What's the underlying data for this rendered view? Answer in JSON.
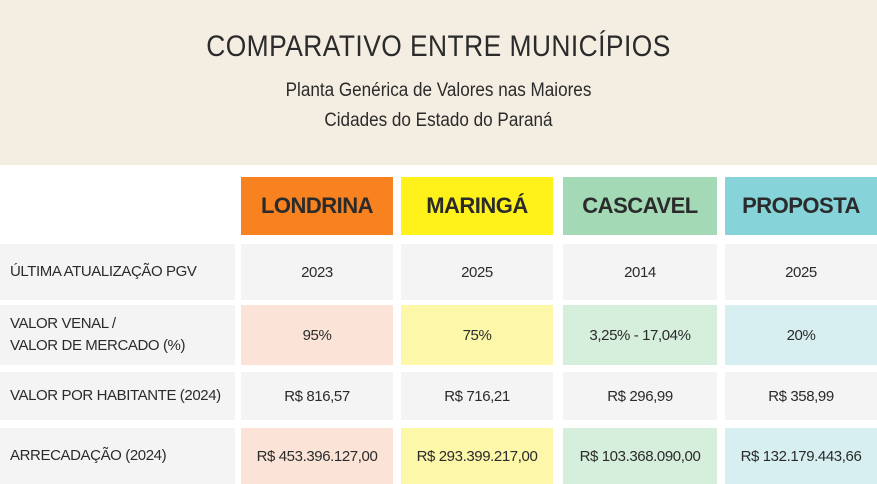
{
  "header": {
    "title": "COMPARATIVO ENTRE MUNICÍPIOS",
    "subtitle": [
      "Planta Genérica de Valores nas Maiores",
      "Cidades do Estado do Paraná"
    ]
  },
  "table": {
    "columns": [
      "LONDRINA",
      "MARINGÁ",
      "CASCAVEL",
      "PROPOSTA"
    ],
    "column_colors": [
      "#f7821f",
      "#fff21a",
      "#a3d9b5",
      "#86d3d9"
    ],
    "tint_colors": [
      "#fbe4d7",
      "#fdf7a9",
      "#d6efdc",
      "#d7eff1"
    ],
    "rows": [
      [
        "ÚLTIMA ATUALIZAÇÃO PGV",
        "2023",
        "2025",
        "2014",
        "2025"
      ],
      [
        "VALOR VENAL /\nVALOR DE MERCADO (%)",
        "95%",
        "75%",
        "3,25% - 17,04%",
        "20%"
      ],
      [
        "VALOR POR HABITANTE (2024)",
        "R$ 816,57",
        "R$ 716,21",
        "R$ 296,99",
        "R$ 358,99"
      ],
      [
        "ARRECADAÇÃO (2024)",
        "R$ 453.396.127,00",
        "R$ 293.399.217,00",
        "R$ 103.368.090,00",
        "R$ 132.179.443,66"
      ]
    ],
    "tinted_rows": [
      1,
      3
    ]
  }
}
